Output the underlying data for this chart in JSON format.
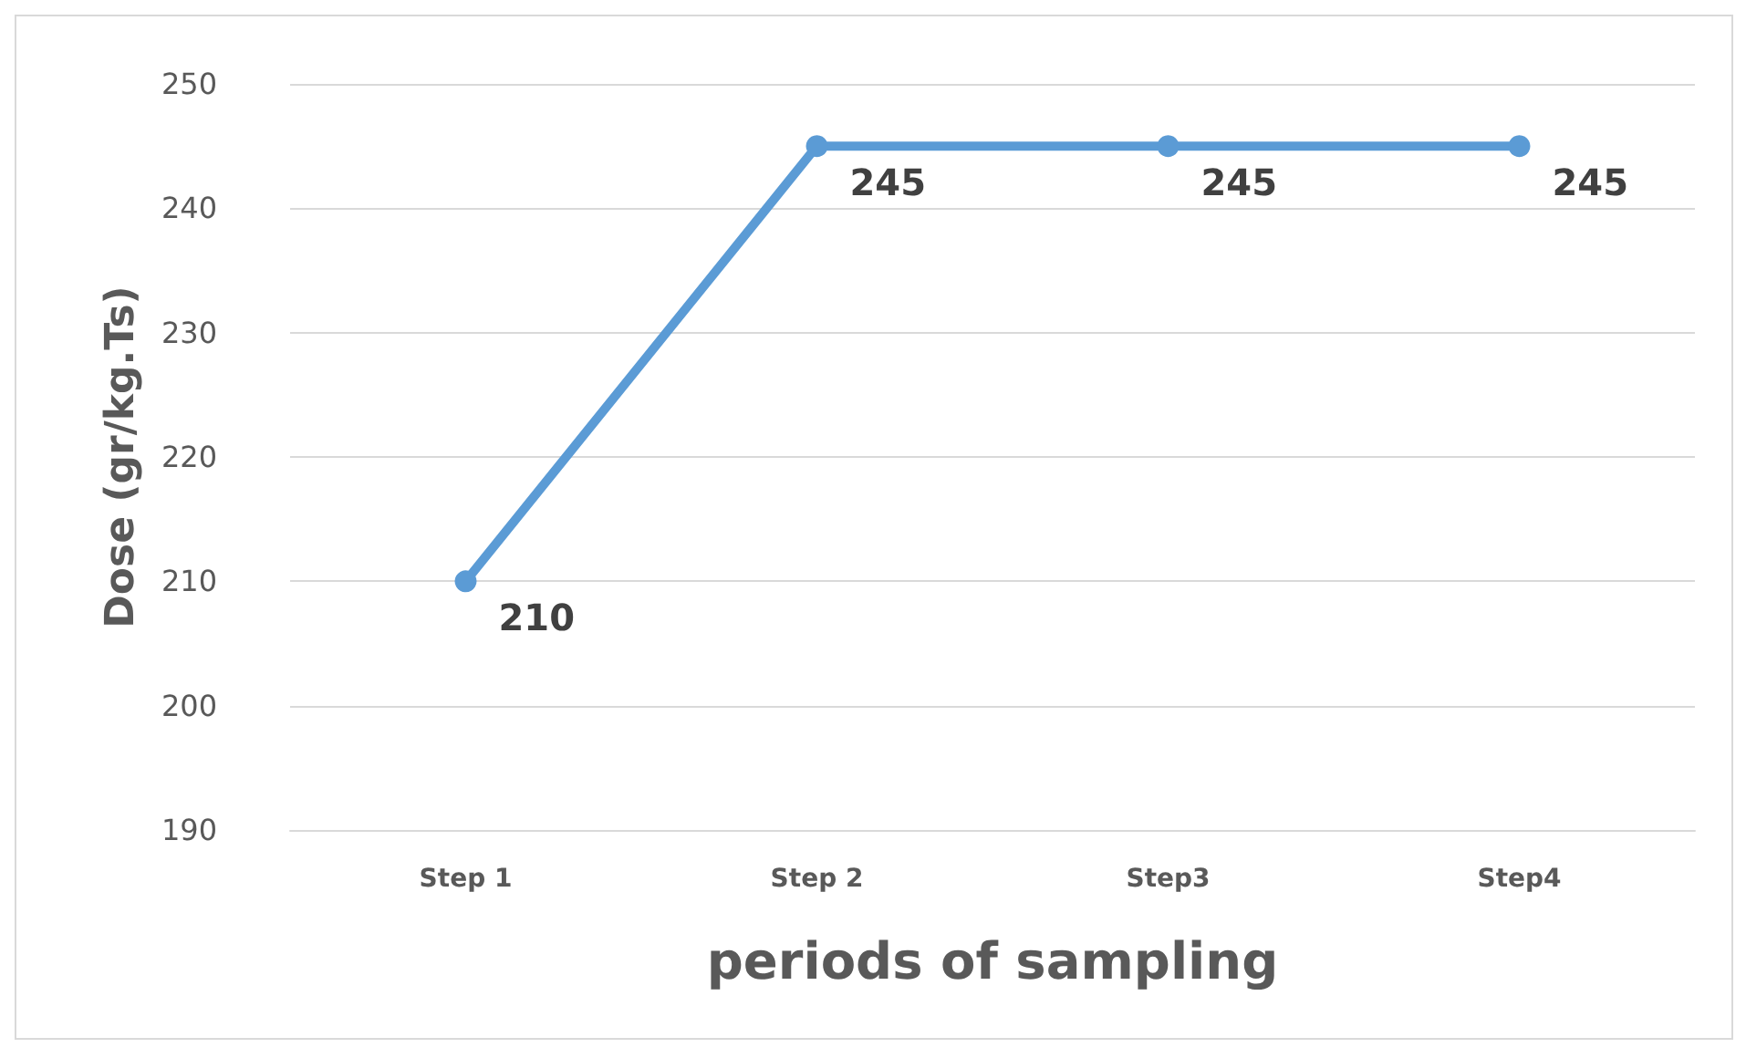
{
  "chart_data": {
    "type": "line",
    "xlabel": "periods of sampling",
    "ylabel": "Dose (gr/kg.Ts)",
    "categories": [
      "Step 1",
      "Step 2",
      "Step3",
      "Step4"
    ],
    "series": [
      {
        "color": "#5b9bd5",
        "values": [
          210,
          245,
          245,
          245
        ]
      }
    ],
    "ylim": [
      190,
      250
    ],
    "yticks": [
      190,
      200,
      210,
      220,
      230,
      240,
      250
    ],
    "grid": "y",
    "marker": "circle",
    "line_style": "solid",
    "data_labels": true
  }
}
